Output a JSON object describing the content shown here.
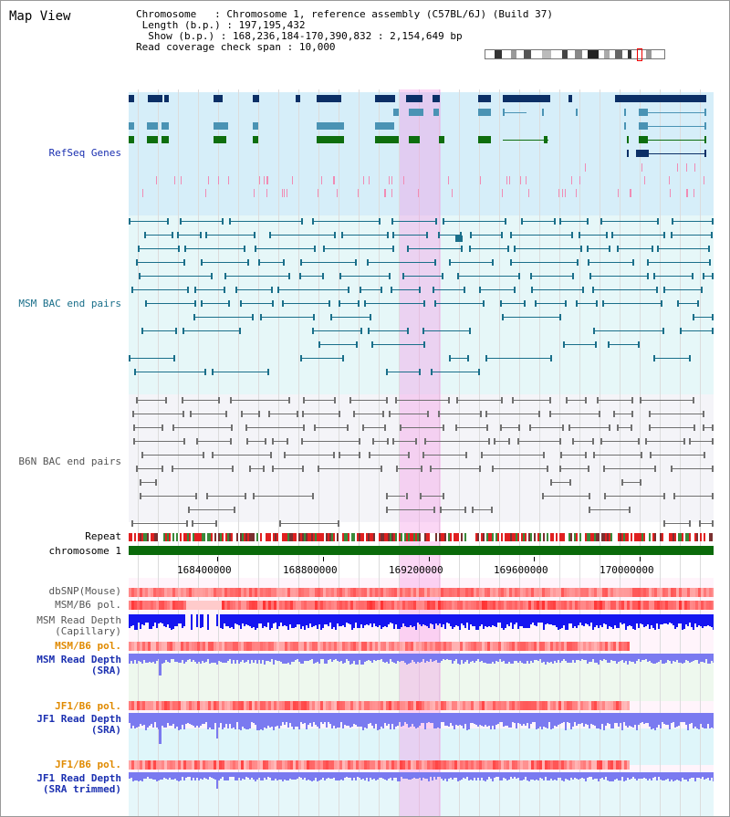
{
  "header": {
    "title": "Map View",
    "chromosome_label": "Chromosome",
    "chromosome_value": ": Chromosome 1, reference assembly (C57BL/6J) (Build 37)",
    "length_label": "Length (b.p.)",
    "length_value": ": 197,195,432",
    "show_label": "Show (b.p.)",
    "show_value": ": 168,236,184-170,390,832 : 2,154,649 bp",
    "coverage_label": "Read coverage check span",
    "coverage_value": ": 10,000"
  },
  "tracks": {
    "refseq": "RefSeq Genes",
    "msm_bac": "MSM BAC end pairs",
    "b6n_bac": "B6N BAC end pairs",
    "repeat": "Repeat",
    "chromosome": "chromosome 1",
    "dbsnp": "dbSNP(Mouse)",
    "msm_b6_pol": "MSM/B6 pol.",
    "msm_read_depth_1": "MSM Read Depth",
    "msm_read_depth_1b": "(Capillary)",
    "msm_b6_pol_2": "MSM/B6 pol.",
    "msm_read_depth_2": "MSM Read Depth",
    "msm_read_depth_2b": "(SRA)",
    "jf1_b6_pol": "JF1/B6 pol.",
    "jf1_read_depth": "JF1 Read Depth",
    "jf1_read_depth_b": "(SRA)",
    "jf1_b6_pol_2": "JF1/B6 pol.",
    "jf1_read_depth_2": "JF1 Read Depth",
    "jf1_read_depth_2b": "(SRA trimmed)"
  },
  "axis": {
    "ticks": [
      "168400000",
      "168800000",
      "169200000",
      "169600000",
      "170000000"
    ]
  },
  "colors": {
    "refseq_bg": "#d6eef9",
    "msm_bg": "#e6f7f8",
    "b6n_bg": "#f4f4f8",
    "gene_navy": "#0b2f66",
    "gene_teal": "#4a93b4",
    "gene_green": "#0e6e0e",
    "msm_line": "#1a6f8a",
    "b6n_line": "#707070",
    "highlight": "#f496e4",
    "chrom": "#0a6a0a",
    "depth_blue": "#1515f0",
    "depth_light": "#7a7af0"
  }
}
